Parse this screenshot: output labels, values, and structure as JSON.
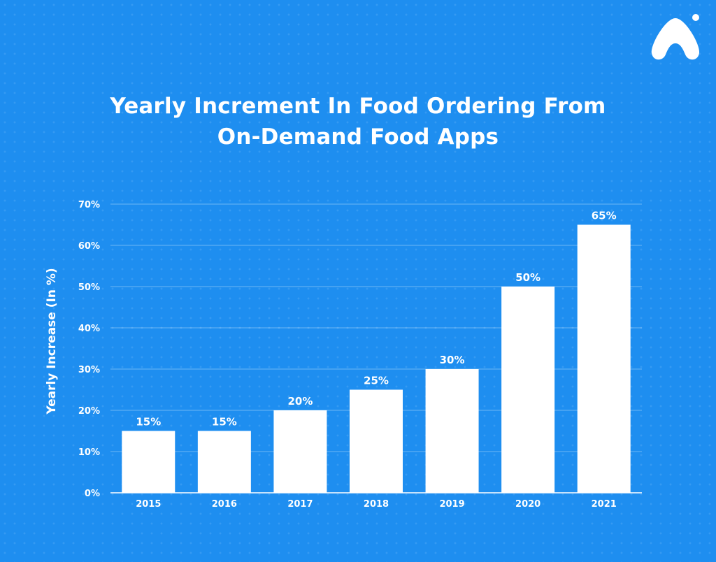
{
  "logo": {
    "icon": "brand-logo-icon",
    "color": "#ffffff"
  },
  "background_color": "#1e8ef0",
  "chart_data": {
    "type": "bar",
    "title_line1": "Yearly Increment In Food Ordering From",
    "title_line2": "On-Demand Food Apps",
    "ylabel": "Yearly Increase (In %)",
    "xlabel": "",
    "categories": [
      "2015",
      "2016",
      "2017",
      "2018",
      "2019",
      "2020",
      "2021"
    ],
    "values": [
      15,
      15,
      20,
      25,
      30,
      50,
      65
    ],
    "data_labels": [
      "15%",
      "15%",
      "20%",
      "25%",
      "30%",
      "50%",
      "65%"
    ],
    "ylim": [
      0,
      70
    ],
    "yticks": [
      0,
      10,
      20,
      30,
      40,
      50,
      60,
      70
    ],
    "ytick_labels": [
      "0%",
      "10%",
      "20%",
      "30%",
      "40%",
      "50%",
      "60%",
      "70%"
    ],
    "bar_color": "#ffffff",
    "grid": true,
    "legend": "none"
  }
}
